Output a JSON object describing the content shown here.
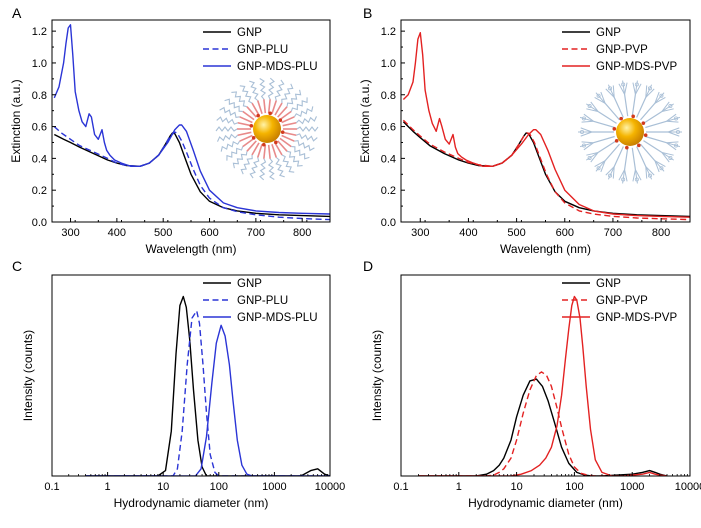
{
  "colors": {
    "black": "#000000",
    "blue": "#2b35d6",
    "red": "#e32222",
    "gold": "#f5b400",
    "ligand_blue": "#a9bfd6",
    "ligand_red": "#e88a8a",
    "star": "#d23b1e"
  },
  "chart_data": [
    {
      "id": "A",
      "panel_letter": "A",
      "type": "line",
      "xlabel": "Wavelength (nm)",
      "ylabel": "Extinction (a.u.)",
      "xlim": [
        260,
        860
      ],
      "ylim": [
        0,
        1.27
      ],
      "xticks": [
        300,
        400,
        500,
        600,
        700,
        800
      ],
      "xtick_labels": [
        "300",
        "400",
        "500",
        "600",
        "700",
        "800"
      ],
      "yticks": [
        0,
        0.2,
        0.4,
        0.6,
        0.8,
        1.0,
        1.2
      ],
      "ytick_labels": [
        "0.0",
        "0.2",
        "0.4",
        "0.6",
        "0.8",
        "1.0",
        "1.2"
      ],
      "legend": [
        "GNP",
        "GNP-PLU",
        "GNP-MDS-PLU"
      ],
      "inset": "ring",
      "series": [
        {
          "name": "GNP",
          "color": "#000000",
          "dash": "solid",
          "x": [
            265,
            285,
            300,
            320,
            350,
            380,
            400,
            420,
            450,
            470,
            490,
            505,
            515,
            520,
            525,
            535,
            545,
            560,
            580,
            600,
            630,
            660,
            700,
            750,
            800,
            860
          ],
          "y": [
            0.55,
            0.52,
            0.5,
            0.47,
            0.43,
            0.39,
            0.37,
            0.355,
            0.35,
            0.37,
            0.42,
            0.49,
            0.54,
            0.56,
            0.555,
            0.5,
            0.42,
            0.3,
            0.19,
            0.13,
            0.09,
            0.07,
            0.055,
            0.045,
            0.04,
            0.035
          ]
        },
        {
          "name": "GNP-PLU",
          "color": "#2b35d6",
          "dash": "dashed",
          "x": [
            265,
            280,
            300,
            320,
            350,
            380,
            400,
            420,
            450,
            470,
            490,
            505,
            515,
            525,
            530,
            540,
            550,
            565,
            580,
            600,
            630,
            660,
            700,
            750,
            800,
            860
          ],
          "y": [
            0.6,
            0.56,
            0.52,
            0.48,
            0.44,
            0.4,
            0.37,
            0.355,
            0.35,
            0.37,
            0.42,
            0.49,
            0.54,
            0.565,
            0.56,
            0.51,
            0.44,
            0.33,
            0.23,
            0.15,
            0.09,
            0.065,
            0.045,
            0.03,
            0.022,
            0.015
          ]
        },
        {
          "name": "GNP-MDS-PLU",
          "color": "#2b35d6",
          "dash": "solid",
          "x": [
            265,
            275,
            285,
            290,
            295,
            300,
            305,
            310,
            318,
            325,
            333,
            340,
            345,
            352,
            360,
            368,
            373,
            378,
            385,
            395,
            410,
            430,
            450,
            470,
            490,
            510,
            525,
            535,
            540,
            550,
            565,
            580,
            600,
            630,
            660,
            700,
            750,
            800,
            860
          ],
          "y": [
            0.78,
            0.85,
            1.0,
            1.12,
            1.22,
            1.24,
            1.05,
            0.82,
            0.7,
            0.63,
            0.6,
            0.68,
            0.66,
            0.55,
            0.52,
            0.58,
            0.5,
            0.45,
            0.42,
            0.39,
            0.37,
            0.35,
            0.35,
            0.37,
            0.42,
            0.5,
            0.58,
            0.61,
            0.61,
            0.57,
            0.45,
            0.32,
            0.2,
            0.12,
            0.09,
            0.07,
            0.06,
            0.055,
            0.05
          ]
        }
      ]
    },
    {
      "id": "B",
      "panel_letter": "B",
      "type": "line",
      "xlabel": "Wavelength (nm)",
      "ylabel": "Extinction (a.u.)",
      "xlim": [
        260,
        860
      ],
      "ylim": [
        0,
        1.27
      ],
      "xticks": [
        300,
        400,
        500,
        600,
        700,
        800
      ],
      "xtick_labels": [
        "300",
        "400",
        "500",
        "600",
        "700",
        "800"
      ],
      "yticks": [
        0,
        0.2,
        0.4,
        0.6,
        0.8,
        1.0,
        1.2
      ],
      "ytick_labels": [
        "0.0",
        "0.2",
        "0.4",
        "0.6",
        "0.8",
        "1.0",
        "1.2"
      ],
      "legend": [
        "GNP",
        "GNP-PVP",
        "GNP-MDS-PVP"
      ],
      "inset": "branched",
      "series": [
        {
          "name": "GNP",
          "color": "#000000",
          "dash": "solid",
          "x": [
            265,
            285,
            300,
            320,
            350,
            380,
            400,
            420,
            450,
            470,
            490,
            505,
            515,
            520,
            525,
            535,
            545,
            560,
            580,
            600,
            630,
            660,
            700,
            750,
            800,
            860
          ],
          "y": [
            0.63,
            0.57,
            0.53,
            0.48,
            0.43,
            0.39,
            0.37,
            0.355,
            0.35,
            0.37,
            0.42,
            0.49,
            0.54,
            0.56,
            0.555,
            0.5,
            0.42,
            0.3,
            0.19,
            0.13,
            0.09,
            0.07,
            0.055,
            0.045,
            0.04,
            0.035
          ]
        },
        {
          "name": "GNP-PVP",
          "color": "#e32222",
          "dash": "dashed",
          "x": [
            265,
            285,
            300,
            320,
            350,
            380,
            400,
            420,
            450,
            470,
            490,
            505,
            515,
            522,
            527,
            537,
            547,
            562,
            580,
            600,
            630,
            660,
            700,
            750,
            800,
            860
          ],
          "y": [
            0.64,
            0.58,
            0.54,
            0.49,
            0.44,
            0.4,
            0.375,
            0.36,
            0.35,
            0.37,
            0.42,
            0.49,
            0.54,
            0.56,
            0.555,
            0.5,
            0.42,
            0.3,
            0.19,
            0.12,
            0.07,
            0.05,
            0.035,
            0.025,
            0.02,
            0.015
          ]
        },
        {
          "name": "GNP-MDS-PVP",
          "color": "#e32222",
          "dash": "solid",
          "x": [
            265,
            275,
            285,
            290,
            295,
            300,
            305,
            310,
            318,
            325,
            333,
            340,
            345,
            352,
            360,
            368,
            373,
            378,
            385,
            395,
            410,
            430,
            450,
            470,
            490,
            510,
            525,
            535,
            540,
            550,
            565,
            580,
            600,
            630,
            660,
            700,
            750,
            800,
            860
          ],
          "y": [
            0.77,
            0.8,
            0.88,
            1.0,
            1.15,
            1.19,
            1.05,
            0.83,
            0.7,
            0.62,
            0.57,
            0.65,
            0.6,
            0.52,
            0.49,
            0.55,
            0.47,
            0.43,
            0.41,
            0.39,
            0.37,
            0.35,
            0.35,
            0.37,
            0.42,
            0.49,
            0.55,
            0.58,
            0.58,
            0.55,
            0.45,
            0.33,
            0.2,
            0.11,
            0.07,
            0.05,
            0.04,
            0.035,
            0.03
          ]
        }
      ]
    },
    {
      "id": "C",
      "panel_letter": "C",
      "type": "line",
      "xlabel": "Hydrodynamic diameter (nm)",
      "ylabel": "Intensity (counts)",
      "xscale": "log",
      "xlim": [
        0.1,
        10000
      ],
      "ylim": [
        0,
        1.12
      ],
      "xticks": [
        0.1,
        1,
        10,
        100,
        1000,
        10000
      ],
      "xtick_labels": [
        "0.1",
        "1",
        "10",
        "100",
        "1000",
        "10000"
      ],
      "yticks": [],
      "ytick_labels": [],
      "legend": [
        "GNP",
        "GNP-PLU",
        "GNP-MDS-PLU"
      ],
      "series": [
        {
          "name": "GNP",
          "color": "#000000",
          "dash": "solid",
          "x": [
            0.4,
            8,
            11,
            14,
            17,
            20,
            23,
            26,
            30,
            35,
            42,
            50,
            60,
            80,
            120,
            1000,
            3000,
            4500,
            6000,
            8000,
            10000
          ],
          "y": [
            0,
            0,
            0.03,
            0.25,
            0.68,
            0.95,
            1.0,
            0.94,
            0.76,
            0.48,
            0.2,
            0.05,
            0.0,
            0,
            0,
            0,
            0,
            0.03,
            0.04,
            0.01,
            0
          ]
        },
        {
          "name": "GNP-PLU",
          "color": "#2b35d6",
          "dash": "dashed",
          "x": [
            0.4,
            15,
            18,
            22,
            27,
            33,
            40,
            45,
            52,
            60,
            70,
            85,
            100,
            130,
            10000
          ],
          "y": [
            0,
            0,
            0.04,
            0.25,
            0.62,
            0.88,
            0.92,
            0.85,
            0.62,
            0.35,
            0.12,
            0.02,
            0,
            0,
            0
          ]
        },
        {
          "name": "GNP-MDS-PLU",
          "color": "#2b35d6",
          "dash": "solid",
          "x": [
            0.4,
            38,
            48,
            60,
            75,
            90,
            110,
            130,
            155,
            180,
            215,
            260,
            320,
            400,
            10000
          ],
          "y": [
            0,
            0,
            0.04,
            0.22,
            0.52,
            0.74,
            0.84,
            0.78,
            0.62,
            0.42,
            0.2,
            0.06,
            0.01,
            0,
            0
          ]
        }
      ]
    },
    {
      "id": "D",
      "panel_letter": "D",
      "type": "line",
      "xlabel": "Hydrodynamic diameter (nm)",
      "ylabel": "Intensity (counts)",
      "xscale": "log",
      "xlim": [
        0.1,
        10000
      ],
      "ylim": [
        0,
        1.12
      ],
      "xticks": [
        0.1,
        1,
        10,
        100,
        1000,
        10000
      ],
      "xtick_labels": [
        "0.1",
        "1",
        "10",
        "100",
        "1000",
        "10000"
      ],
      "yticks": [],
      "ytick_labels": [],
      "legend": [
        "GNP",
        "GNP-PVP",
        "GNP-MDS-PVP"
      ],
      "series": [
        {
          "name": "GNP",
          "color": "#000000",
          "dash": "solid",
          "x": [
            0.2,
            2,
            3,
            4,
            5,
            6,
            8,
            10,
            13,
            17,
            22,
            28,
            35,
            45,
            60,
            80,
            110,
            150,
            200,
            300,
            1000,
            1500,
            2000,
            2500,
            3000,
            4000
          ],
          "y": [
            0,
            0,
            0.01,
            0.03,
            0.06,
            0.1,
            0.2,
            0.33,
            0.45,
            0.53,
            0.54,
            0.5,
            0.42,
            0.3,
            0.16,
            0.07,
            0.02,
            0.005,
            0,
            0,
            0.01,
            0.02,
            0.03,
            0.02,
            0.01,
            0
          ]
        },
        {
          "name": "GNP-PVP",
          "color": "#e32222",
          "dash": "dashed",
          "x": [
            0.2,
            3,
            4,
            5,
            6,
            8,
            10,
            13,
            17,
            22,
            27,
            33,
            40,
            50,
            60,
            80,
            100,
            130,
            170,
            220,
            300,
            400
          ],
          "y": [
            0,
            0,
            0.005,
            0.02,
            0.04,
            0.1,
            0.2,
            0.35,
            0.48,
            0.56,
            0.58,
            0.56,
            0.5,
            0.38,
            0.27,
            0.12,
            0.05,
            0.015,
            0.005,
            0,
            0,
            0
          ]
        },
        {
          "name": "GNP-MDS-PVP",
          "color": "#e32222",
          "dash": "solid",
          "x": [
            0.2,
            8,
            12,
            18,
            25,
            32,
            40,
            50,
            60,
            70,
            80,
            90,
            100,
            110,
            125,
            140,
            160,
            190,
            230,
            300,
            450,
            700,
            1000,
            1500,
            2000,
            2500,
            3000,
            4000
          ],
          "y": [
            0,
            0,
            0.01,
            0.03,
            0.06,
            0.1,
            0.16,
            0.28,
            0.45,
            0.65,
            0.82,
            0.95,
            1.0,
            0.98,
            0.88,
            0.72,
            0.5,
            0.26,
            0.09,
            0.02,
            0,
            0,
            0.005,
            0.01,
            0.02,
            0.01,
            0.005,
            0
          ]
        }
      ]
    }
  ]
}
